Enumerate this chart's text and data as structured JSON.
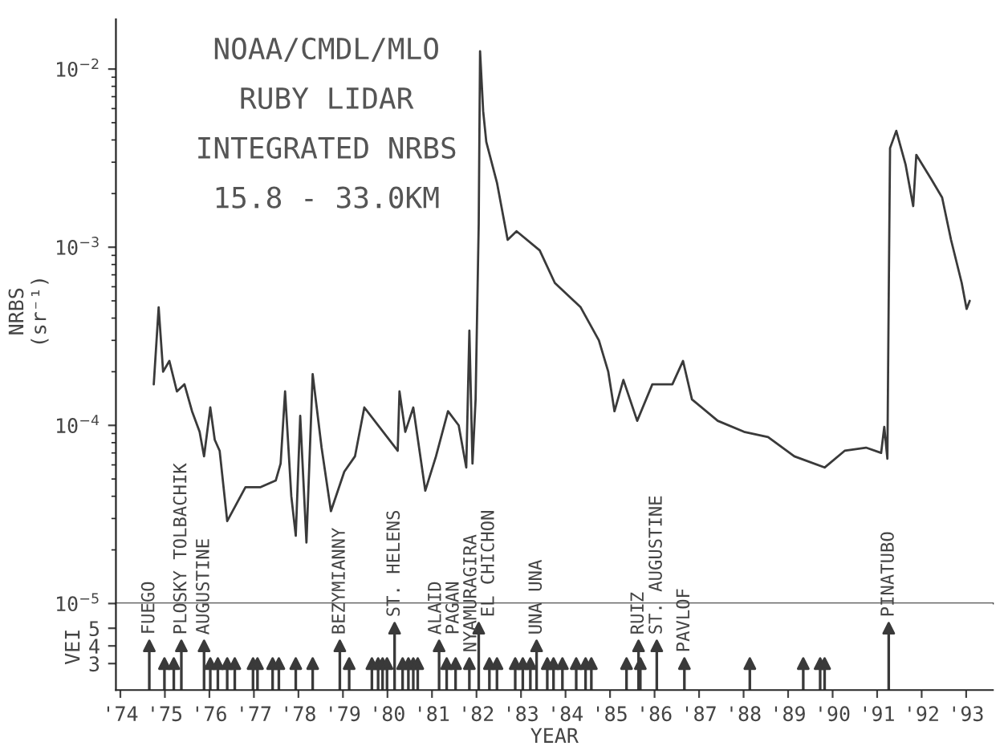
{
  "chart_data": [
    {
      "type": "line",
      "ylabel": "NRBS\n(sr⁻¹)",
      "log": "y",
      "tick_labels": "y",
      "color": "#3a3a3a",
      "line_style": "solid",
      "xlim": [
        73.9,
        93.6
      ],
      "ylim": [
        1e-05,
        0.019
      ],
      "yticks": [
        {
          "value": 1e-05,
          "label": "10$^{−5}$"
        },
        {
          "value": 0.0001,
          "label": "10$^{−4}$"
        },
        {
          "value": 0.001,
          "label": "10$^{−3}$"
        },
        {
          "value": 0.01,
          "label": "10$^{−2}$"
        }
      ],
      "annotations": [
        "NOAA/CMDL/MLO",
        "RUBY LIDAR",
        "INTEGRATED NRBS",
        "15.8 - 33.0KM"
      ],
      "x": [
        74.75,
        74.86,
        74.96,
        75.1,
        75.27,
        75.44,
        75.61,
        75.78,
        75.88,
        76.02,
        76.12,
        76.23,
        76.4,
        76.81,
        77.15,
        77.49,
        77.6,
        77.7,
        77.84,
        77.94,
        78.04,
        78.18,
        78.32,
        78.52,
        78.73,
        79.03,
        79.27,
        79.48,
        80.23,
        80.27,
        80.4,
        80.58,
        80.85,
        81.09,
        81.36,
        81.6,
        81.77,
        81.84,
        81.91,
        81.98,
        82.05,
        82.08,
        82.15,
        82.22,
        82.46,
        82.7,
        82.9,
        83.42,
        83.76,
        84.34,
        84.75,
        84.96,
        85.1,
        85.3,
        85.61,
        85.95,
        86.4,
        86.64,
        86.84,
        87.42,
        88.01,
        88.55,
        89.14,
        89.82,
        90.27,
        90.75,
        91.09,
        91.16,
        91.23,
        91.26,
        91.29,
        91.43,
        91.64,
        91.81,
        91.88,
        92.22,
        92.46,
        92.66,
        92.9,
        93.01,
        93.08
      ],
      "values": [
        0.00017,
        0.00046,
        0.0002,
        0.00023,
        0.000155,
        0.00017,
        0.00012,
        9.2e-05,
        6.7e-05,
        0.000126,
        8.3e-05,
        7.2e-05,
        2.9e-05,
        4.5e-05,
        4.5e-05,
        4.9e-05,
        6.1e-05,
        0.000155,
        4e-05,
        2.4e-05,
        0.000113,
        2.2e-05,
        0.000194,
        7.5e-05,
        3.3e-05,
        5.5e-05,
        6.7e-05,
        0.000126,
        7.2e-05,
        0.000155,
        9.2e-05,
        0.000126,
        4.3e-05,
        6.7e-05,
        0.00012,
        0.0001,
        5.8e-05,
        0.00034,
        6.1e-05,
        0.00014,
        0.00136,
        0.0126,
        0.0058,
        0.0039,
        0.0023,
        0.0011,
        0.00123,
        0.00096,
        0.00063,
        0.00046,
        0.0003,
        0.0002,
        0.00012,
        0.00018,
        0.000106,
        0.00017,
        0.00017,
        0.00023,
        0.00014,
        0.000106,
        9.2e-05,
        8.6e-05,
        6.7e-05,
        5.8e-05,
        7.2e-05,
        7.5e-05,
        7e-05,
        9.8e-05,
        6.5e-05,
        0.00052,
        0.0036,
        0.0045,
        0.0029,
        0.0017,
        0.0033,
        0.0024,
        0.0019,
        0.0011,
        0.00063,
        0.00045,
        0.0005
      ]
    },
    {
      "type": "lollipop",
      "xlabel": "YEAR",
      "ylabel": "VEI",
      "color": "#3a3a3a",
      "marker": "triangle",
      "xlim": [
        73.9,
        93.6
      ],
      "ylim": [
        1.5,
        6.4
      ],
      "yticks": [
        3,
        4,
        5
      ],
      "xticks": [
        {
          "value": 74,
          "label": "'74"
        },
        {
          "value": 75,
          "label": "'75"
        },
        {
          "value": 76,
          "label": "'76"
        },
        {
          "value": 77,
          "label": "'77"
        },
        {
          "value": 78,
          "label": "'78"
        },
        {
          "value": 79,
          "label": "'79"
        },
        {
          "value": 80,
          "label": "'80"
        },
        {
          "value": 81,
          "label": "'81"
        },
        {
          "value": 82,
          "label": "'82"
        },
        {
          "value": 83,
          "label": "'83"
        },
        {
          "value": 84,
          "label": "'84"
        },
        {
          "value": 85,
          "label": "'85"
        },
        {
          "value": 86,
          "label": "'86"
        },
        {
          "value": 87,
          "label": "'87"
        },
        {
          "value": 88,
          "label": "'88"
        },
        {
          "value": 89,
          "label": "'89"
        },
        {
          "value": 90,
          "label": "'90"
        },
        {
          "value": 91,
          "label": "'91"
        },
        {
          "value": 92,
          "label": "'92"
        },
        {
          "value": 93,
          "label": "'93"
        }
      ],
      "x": [
        74.65,
        74.99,
        75.2,
        75.37,
        75.88,
        76.02,
        76.19,
        76.4,
        76.57,
        76.98,
        77.08,
        77.42,
        77.56,
        77.94,
        78.32,
        78.93,
        79.14,
        79.65,
        79.79,
        79.89,
        79.99,
        80.16,
        80.34,
        80.47,
        80.58,
        80.68,
        81.09,
        81.16,
        81.33,
        81.53,
        81.84,
        82.05,
        82.29,
        82.46,
        82.87,
        83.04,
        83.21,
        83.35,
        83.59,
        83.73,
        83.93,
        84.24,
        84.45,
        84.58,
        85.37,
        85.64,
        85.68,
        86.05,
        86.67,
        88.14,
        89.34,
        89.72,
        89.82,
        91.26
      ],
      "values": [
        4,
        3,
        3,
        4,
        4,
        3,
        3,
        3,
        3,
        3,
        3,
        3,
        3,
        3,
        3,
        4,
        3,
        3,
        3,
        3,
        3,
        5,
        3,
        3,
        3,
        3,
        null,
        4,
        3,
        3,
        3,
        5,
        3,
        3,
        3,
        3,
        3,
        4,
        3,
        3,
        3,
        3,
        3,
        3,
        3,
        4,
        3,
        4,
        3,
        3,
        3,
        3,
        3,
        5
      ],
      "annotations": [
        {
          "text": "FUEGO",
          "x": 74.65,
          "y": 4
        },
        {
          "text": "PLOSKY TOLBACHIK",
          "x": 75.37,
          "y": 4
        },
        {
          "text": "AUGUSTINE",
          "x": 75.88,
          "y": 4
        },
        {
          "text": "BEZYMIANNY",
          "x": 78.93,
          "y": 4
        },
        {
          "text": "ST. HELENS",
          "x": 80.16,
          "y": 5
        },
        {
          "text": "ALAID",
          "x": 81.09,
          "y": 4
        },
        {
          "text": "PAGAN",
          "x": 81.16,
          "y": 4
        },
        {
          "text": "NYAMURAGIRA",
          "x": 81.84,
          "y": 3
        },
        {
          "text": "EL CHICHON",
          "x": 82.05,
          "y": 5
        },
        {
          "text": "UNA UNA",
          "x": 83.35,
          "y": 4
        },
        {
          "text": "RUIZ",
          "x": 85.64,
          "y": 4
        },
        {
          "text": "ST. AUGUSTINE",
          "x": 86.05,
          "y": 4
        },
        {
          "text": "PAVLOF",
          "x": 86.67,
          "y": 3
        },
        {
          "text": "PINATUBO",
          "x": 91.26,
          "y": 5
        }
      ]
    }
  ]
}
